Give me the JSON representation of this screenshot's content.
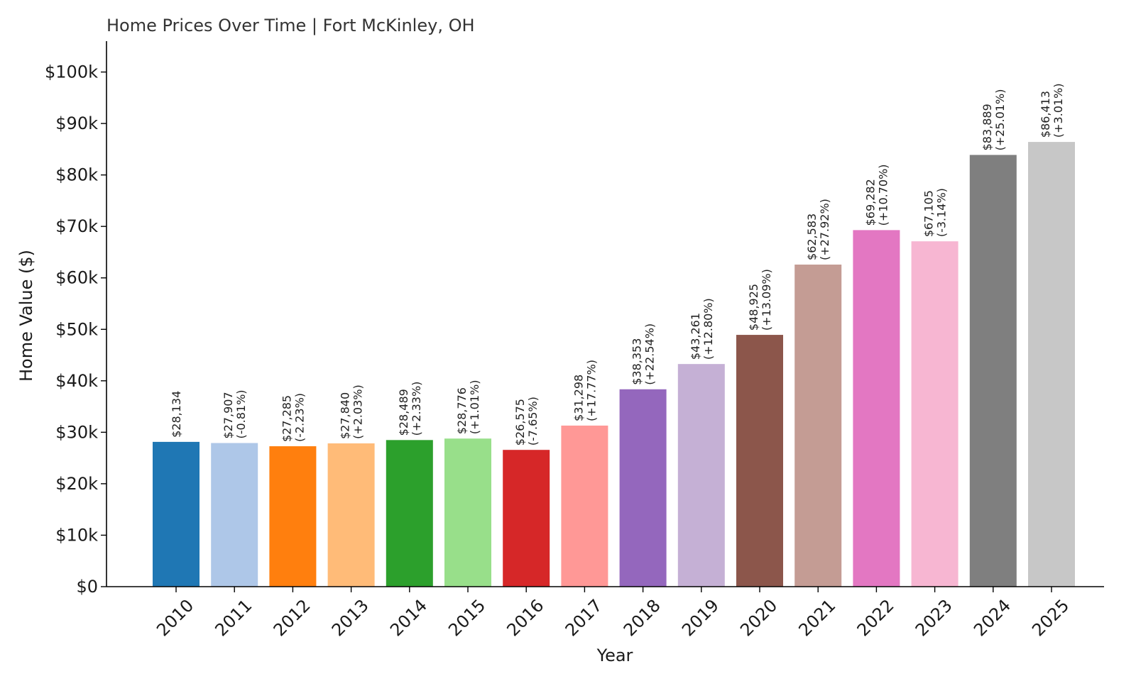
{
  "chart_data": {
    "type": "bar",
    "title": "Home Prices Over Time | Fort McKinley, OH",
    "xlabel": "Year",
    "ylabel": "Home Value ($)",
    "ylim": [
      0,
      106000
    ],
    "yticks": [
      0,
      10000,
      20000,
      30000,
      40000,
      50000,
      60000,
      70000,
      80000,
      90000,
      100000
    ],
    "ytick_labels": [
      "$0",
      "$10k",
      "$20k",
      "$30k",
      "$40k",
      "$50k",
      "$60k",
      "$70k",
      "$80k",
      "$90k",
      "$100k"
    ],
    "grid": false,
    "legend": "none",
    "categories": [
      "2010",
      "2011",
      "2012",
      "2013",
      "2014",
      "2015",
      "2016",
      "2017",
      "2018",
      "2019",
      "2020",
      "2021",
      "2022",
      "2023",
      "2024",
      "2025"
    ],
    "values": [
      28134,
      27907,
      27285,
      27840,
      28489,
      28776,
      26575,
      31298,
      38353,
      43261,
      48925,
      62583,
      69282,
      67105,
      83889,
      86413
    ],
    "value_labels": [
      "$28,134",
      "$27,907",
      "$27,285",
      "$27,840",
      "$28,489",
      "$28,776",
      "$26,575",
      "$31,298",
      "$38,353",
      "$43,261",
      "$48,925",
      "$62,583",
      "$69,282",
      "$67,105",
      "$83,889",
      "$86,413"
    ],
    "change_labels": [
      "",
      "(-0.81%)",
      "(-2.23%)",
      "(+2.03%)",
      "(+2.33%)",
      "(+1.01%)",
      "(-7.65%)",
      "(+17.77%)",
      "(+22.54%)",
      "(+12.80%)",
      "(+13.09%)",
      "(+27.92%)",
      "(+10.70%)",
      "(-3.14%)",
      "(+25.01%)",
      "(+3.01%)"
    ],
    "colors": [
      "#1f77b4",
      "#aec7e8",
      "#ff7f0e",
      "#ffbb78",
      "#2ca02c",
      "#98df8a",
      "#d62728",
      "#ff9896",
      "#9467bd",
      "#c5b0d5",
      "#8c564b",
      "#c49c94",
      "#e377c2",
      "#f7b6d2",
      "#7f7f7f",
      "#c7c7c7"
    ]
  }
}
